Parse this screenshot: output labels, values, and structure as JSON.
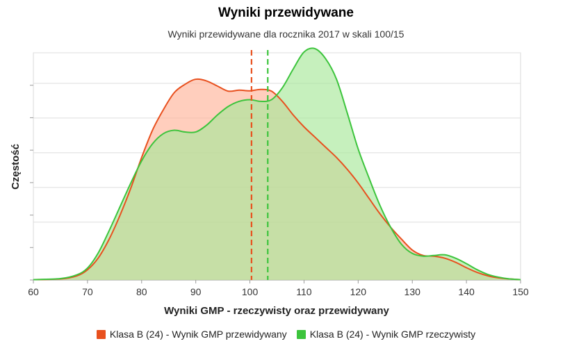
{
  "chart_data": {
    "type": "area",
    "title": "Wyniki przewidywane",
    "subtitle": "Wyniki przewidywane dla rocznika 2017 w skali 100/15",
    "xlabel": "Wyniki GMP - rzeczywisty oraz przewidywany",
    "ylabel": "Częstość",
    "xlim": [
      60,
      150
    ],
    "ylim": [
      0,
      6.8
    ],
    "x_ticks": [
      "60",
      "70",
      "80",
      "90",
      "100",
      "110",
      "120",
      "130",
      "140",
      "150"
    ],
    "grid": true,
    "legend_position": "bottom",
    "series": [
      {
        "name": "Klasa B (24) - Wynik GMP przewidywany",
        "color": "#e8501e",
        "fill": "#ffb39a",
        "mean": 100.3,
        "x": [
          60,
          65,
          68,
          70,
          72,
          74,
          76,
          78,
          80,
          82,
          84,
          86,
          88,
          90,
          92,
          94,
          96,
          98,
          100,
          102,
          104,
          106,
          108,
          110,
          112,
          114,
          116,
          118,
          120,
          122,
          124,
          126,
          128,
          130,
          132,
          134,
          136,
          138,
          140,
          142,
          144,
          146,
          148,
          150
        ],
        "y": [
          0.01,
          0.03,
          0.12,
          0.3,
          0.65,
          1.2,
          1.9,
          2.7,
          3.6,
          4.4,
          5.0,
          5.5,
          5.75,
          5.9,
          5.85,
          5.7,
          5.55,
          5.58,
          5.56,
          5.6,
          5.55,
          5.25,
          4.85,
          4.5,
          4.2,
          3.9,
          3.6,
          3.25,
          2.85,
          2.4,
          1.95,
          1.55,
          1.2,
          0.88,
          0.72,
          0.7,
          0.64,
          0.52,
          0.36,
          0.22,
          0.12,
          0.06,
          0.03,
          0.01
        ]
      },
      {
        "name": "Klasa B (24) - Wynik GMP rzeczywisty",
        "color": "#3cc43c",
        "fill": "#a8e89a",
        "mean": 103.3,
        "x": [
          60,
          65,
          68,
          70,
          72,
          74,
          76,
          78,
          80,
          82,
          84,
          86,
          88,
          90,
          92,
          94,
          96,
          98,
          100,
          102,
          104,
          106,
          108,
          110,
          112,
          114,
          116,
          118,
          120,
          122,
          124,
          126,
          128,
          130,
          132,
          134,
          136,
          138,
          140,
          142,
          144,
          146,
          148,
          150
        ],
        "y": [
          0.01,
          0.04,
          0.15,
          0.35,
          0.8,
          1.45,
          2.15,
          2.85,
          3.5,
          4.0,
          4.3,
          4.4,
          4.35,
          4.35,
          4.55,
          4.85,
          5.1,
          5.25,
          5.3,
          5.25,
          5.3,
          5.65,
          6.2,
          6.7,
          6.8,
          6.5,
          5.9,
          4.9,
          3.85,
          3.0,
          2.2,
          1.55,
          1.05,
          0.78,
          0.7,
          0.72,
          0.74,
          0.64,
          0.48,
          0.3,
          0.16,
          0.08,
          0.03,
          0.01
        ]
      }
    ]
  }
}
